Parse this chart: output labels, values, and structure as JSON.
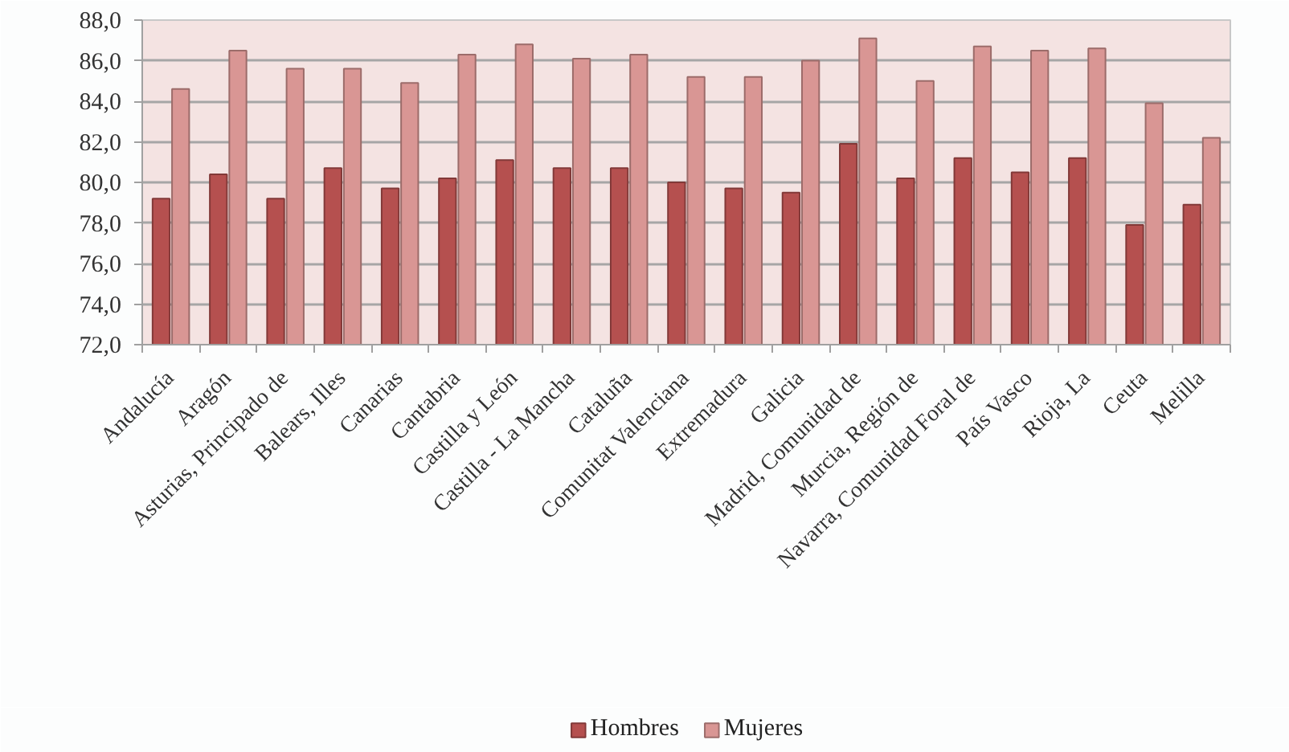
{
  "chart_data": {
    "type": "bar",
    "categories": [
      "Andalucía",
      "Aragón",
      "Asturias, Principado de",
      "Balears, Illes",
      "Canarias",
      "Cantabria",
      "Castilla y León",
      "Castilla - La Mancha",
      "Cataluña",
      "Comunitat Valenciana",
      "Extremadura",
      "Galicia",
      "Madrid, Comunidad de",
      "Murcia, Región de",
      "Navarra, Comunidad Foral de",
      "País Vasco",
      "Rioja, La",
      "Ceuta",
      "Melilla"
    ],
    "series": [
      {
        "name": "Hombres",
        "color": "#b5504f",
        "values": [
          79.2,
          80.4,
          79.2,
          80.7,
          79.7,
          80.2,
          81.1,
          80.7,
          80.7,
          80.0,
          79.7,
          79.5,
          81.9,
          80.2,
          81.2,
          80.5,
          81.2,
          77.9,
          78.9
        ]
      },
      {
        "name": "Mujeres",
        "color": "#d99694",
        "values": [
          84.6,
          86.5,
          85.6,
          85.6,
          84.9,
          86.3,
          86.8,
          86.1,
          86.3,
          85.2,
          85.2,
          86.0,
          87.1,
          85.0,
          86.7,
          86.5,
          86.6,
          83.9,
          82.2
        ]
      }
    ],
    "ylim": [
      72,
      88
    ],
    "yticks": [
      {
        "value": 72,
        "label": "72,0"
      },
      {
        "value": 74,
        "label": "74,0"
      },
      {
        "value": 76,
        "label": "76,0"
      },
      {
        "value": 78,
        "label": "78,0"
      },
      {
        "value": 80,
        "label": "80,0"
      },
      {
        "value": 82,
        "label": "82,0"
      },
      {
        "value": 84,
        "label": "84,0"
      },
      {
        "value": 86,
        "label": "86,0"
      },
      {
        "value": 88,
        "label": "88,0"
      }
    ],
    "grid": "y",
    "legend": "bottom"
  }
}
